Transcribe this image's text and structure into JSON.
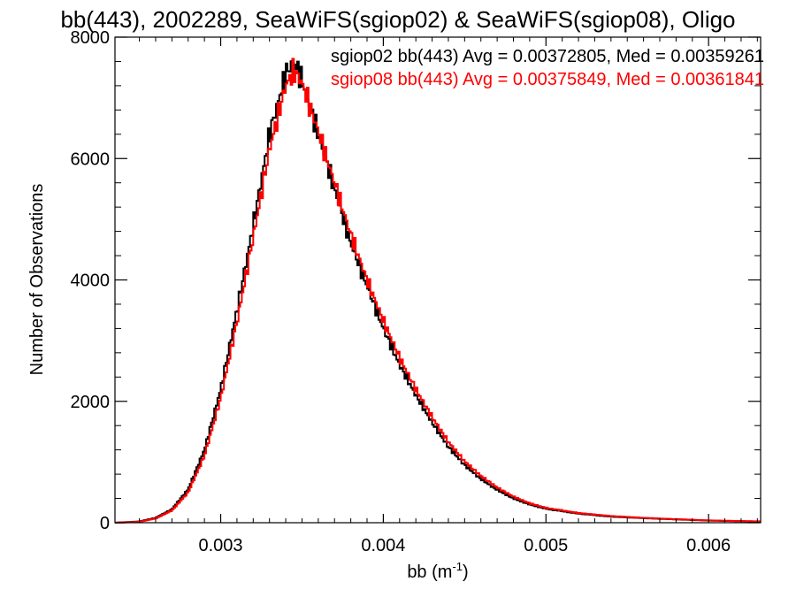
{
  "chart_data": {
    "type": "line",
    "title": "bb(443), 2002289, SeaWiFS(sgiop02) & SeaWiFS(sgiop08), Oligo",
    "xlabel": "bb (m",
    "xlabel_sup": "-1",
    "xlabel_end": ")",
    "ylabel": "Number of Observations",
    "xlim": [
      0.00235,
      0.00632
    ],
    "ylim": [
      0,
      8000
    ],
    "x_ticks": [
      0.003,
      0.004,
      0.005,
      0.006
    ],
    "x_tick_labels": [
      "0.003",
      "0.004",
      "0.005",
      "0.006"
    ],
    "y_ticks": [
      0,
      2000,
      4000,
      6000,
      8000
    ],
    "y_tick_labels": [
      "0",
      "2000",
      "4000",
      "6000",
      "8000"
    ],
    "grid": false,
    "step": "histogram",
    "series": [
      {
        "name": "sgiop02",
        "color": "#000000",
        "annotation": "sgiop02 bb(443) Avg = 0.00372805, Med = 0.00359261",
        "points": [
          [
            0.00235,
            0
          ],
          [
            0.0025,
            20
          ],
          [
            0.0026,
            80
          ],
          [
            0.0027,
            220
          ],
          [
            0.0028,
            550
          ],
          [
            0.0029,
            1200
          ],
          [
            0.003,
            2200
          ],
          [
            0.0031,
            3500
          ],
          [
            0.0032,
            4900
          ],
          [
            0.0033,
            6400
          ],
          [
            0.0034,
            7400
          ],
          [
            0.00345,
            7600
          ],
          [
            0.0035,
            7300
          ],
          [
            0.0036,
            6400
          ],
          [
            0.0037,
            5500
          ],
          [
            0.0038,
            4600
          ],
          [
            0.0039,
            3900
          ],
          [
            0.004,
            3200
          ],
          [
            0.0041,
            2600
          ],
          [
            0.0042,
            2100
          ],
          [
            0.0043,
            1650
          ],
          [
            0.0044,
            1250
          ],
          [
            0.0045,
            950
          ],
          [
            0.0046,
            720
          ],
          [
            0.0047,
            540
          ],
          [
            0.0048,
            400
          ],
          [
            0.0049,
            300
          ],
          [
            0.005,
            230
          ],
          [
            0.0052,
            150
          ],
          [
            0.0054,
            100
          ],
          [
            0.0056,
            75
          ],
          [
            0.0058,
            55
          ],
          [
            0.006,
            35
          ],
          [
            0.0062,
            25
          ],
          [
            0.00632,
            20
          ]
        ]
      },
      {
        "name": "sgiop08",
        "color": "#ff0000",
        "annotation": "sgiop08 bb(443) Avg = 0.00375849, Med = 0.00361841",
        "points": [
          [
            0.00235,
            0
          ],
          [
            0.0025,
            15
          ],
          [
            0.0026,
            70
          ],
          [
            0.0027,
            200
          ],
          [
            0.0028,
            500
          ],
          [
            0.0029,
            1100
          ],
          [
            0.003,
            2050
          ],
          [
            0.0031,
            3300
          ],
          [
            0.0032,
            4700
          ],
          [
            0.0033,
            6150
          ],
          [
            0.0034,
            7200
          ],
          [
            0.00345,
            7450
          ],
          [
            0.0035,
            7250
          ],
          [
            0.0036,
            6450
          ],
          [
            0.0037,
            5600
          ],
          [
            0.0038,
            4750
          ],
          [
            0.0039,
            4000
          ],
          [
            0.004,
            3330
          ],
          [
            0.0041,
            2720
          ],
          [
            0.0042,
            2200
          ],
          [
            0.0043,
            1740
          ],
          [
            0.0044,
            1330
          ],
          [
            0.0045,
            1010
          ],
          [
            0.0046,
            770
          ],
          [
            0.0047,
            580
          ],
          [
            0.0048,
            430
          ],
          [
            0.0049,
            320
          ],
          [
            0.005,
            245
          ],
          [
            0.0052,
            160
          ],
          [
            0.0054,
            110
          ],
          [
            0.0056,
            80
          ],
          [
            0.0058,
            58
          ],
          [
            0.006,
            38
          ],
          [
            0.0062,
            27
          ],
          [
            0.00632,
            22
          ]
        ]
      }
    ]
  }
}
